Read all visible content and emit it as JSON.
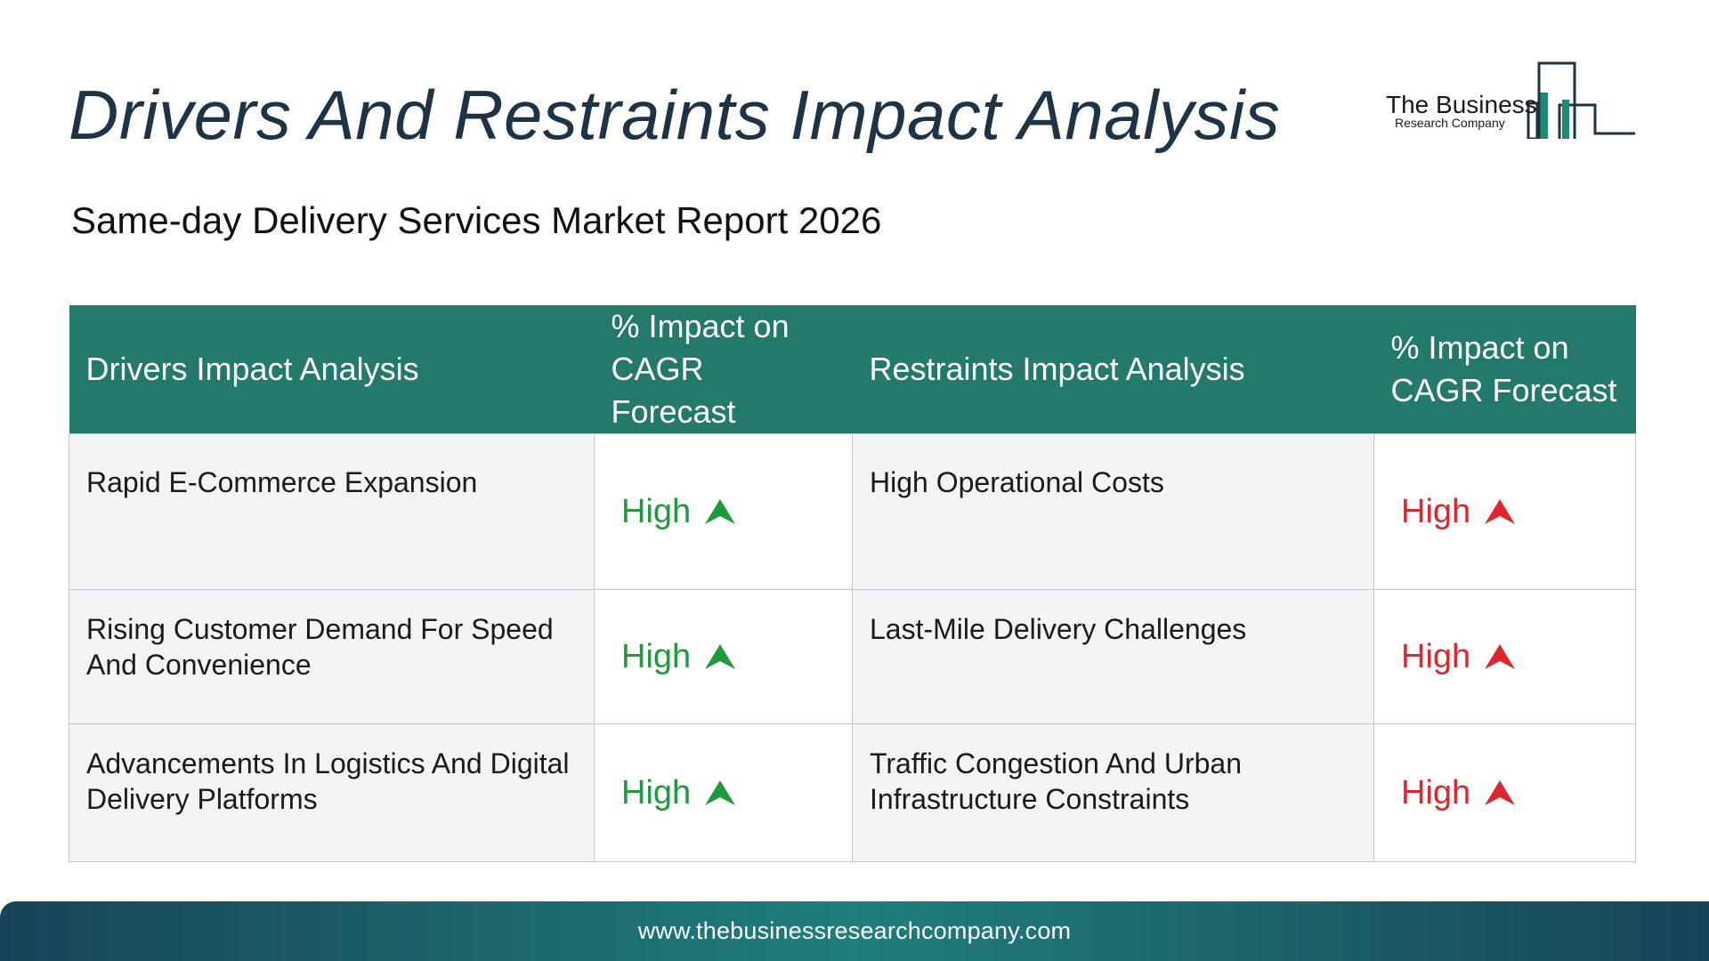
{
  "page": {
    "title": "Drivers And Restraints Impact Analysis",
    "subtitle": "Same-day Delivery Services Market Report 2026"
  },
  "logo": {
    "name": "The Business",
    "tagline": "Research Company",
    "icon": "building-bars-icon",
    "accent_color": "#1f8a73",
    "outline_color": "#1f3347"
  },
  "table": {
    "headers": {
      "drivers": "Drivers Impact Analysis",
      "drivers_impact": "% Impact on CAGR Forecast",
      "restraints": "Restraints Impact Analysis",
      "restraints_impact": "% Impact on CAGR Forecast"
    },
    "header_color": "#247a6a",
    "rows": [
      {
        "driver": "Rapid E-Commerce Expansion",
        "driver_impact": "High",
        "restraint": "High Operational Costs",
        "restraint_impact": "High"
      },
      {
        "driver": "Rising Customer Demand For Speed And Convenience",
        "driver_impact": "High",
        "restraint": "Last-Mile Delivery Challenges",
        "restraint_impact": "High"
      },
      {
        "driver": "Advancements In Logistics And Digital Delivery Platforms",
        "driver_impact": "High",
        "restraint": "Traffic Congestion And Urban Infrastructure Constraints",
        "restraint_impact": "High"
      }
    ],
    "driver_icon": "green-up-arrow-icon",
    "restraint_icon": "red-up-arrow-icon",
    "driver_color": "#1e9a3c",
    "restraint_color": "#e0262c"
  },
  "footer": {
    "url": "www.thebusinessresearchcompany.com"
  }
}
